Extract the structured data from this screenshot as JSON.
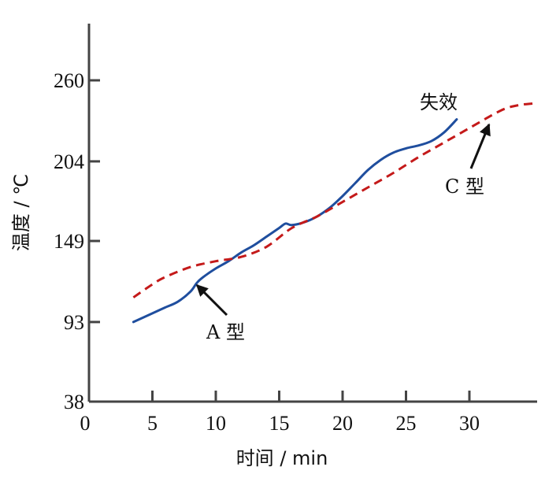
{
  "chart_data": {
    "type": "line",
    "xlabel": "时间 / min",
    "ylabel": "温度 / ℃",
    "x_ticks": [
      0,
      5,
      10,
      15,
      20,
      25,
      30
    ],
    "y_ticks": [
      38,
      93,
      149,
      204,
      260
    ],
    "xlim": [
      0,
      35
    ],
    "ylim": [
      38,
      290
    ],
    "grid": false,
    "series": [
      {
        "name": "A 型",
        "color": "#1f4e9e",
        "style": "solid",
        "points": [
          [
            3.5,
            93
          ],
          [
            5,
            99
          ],
          [
            6,
            103
          ],
          [
            7,
            107
          ],
          [
            8,
            114
          ],
          [
            8.5,
            120
          ],
          [
            9,
            124
          ],
          [
            10,
            130
          ],
          [
            11,
            135
          ],
          [
            12,
            141
          ],
          [
            13,
            146
          ],
          [
            14,
            152
          ],
          [
            15,
            158
          ],
          [
            15.5,
            161
          ],
          [
            16,
            160
          ],
          [
            17,
            162
          ],
          [
            18,
            166
          ],
          [
            19,
            172
          ],
          [
            20,
            180
          ],
          [
            21,
            189
          ],
          [
            22,
            198
          ],
          [
            23,
            205
          ],
          [
            24,
            210
          ],
          [
            25,
            213
          ],
          [
            26,
            215
          ],
          [
            27,
            218
          ],
          [
            28,
            224
          ],
          [
            29,
            233
          ]
        ]
      },
      {
        "name": "C 型",
        "color": "#c41a1a",
        "style": "dashed",
        "points": [
          [
            3.5,
            110
          ],
          [
            5,
            119
          ],
          [
            6,
            124
          ],
          [
            8,
            131
          ],
          [
            10,
            135
          ],
          [
            12,
            138
          ],
          [
            14,
            145
          ],
          [
            16,
            158
          ],
          [
            18,
            166
          ],
          [
            20,
            176
          ],
          [
            22,
            186
          ],
          [
            24,
            196
          ],
          [
            26,
            207
          ],
          [
            28,
            217
          ],
          [
            30,
            227
          ],
          [
            32,
            237
          ],
          [
            33,
            241
          ],
          [
            34,
            243
          ],
          [
            35,
            244
          ]
        ]
      }
    ],
    "annotations": [
      {
        "text": "A 型",
        "target": [
          8.7,
          119
        ]
      },
      {
        "text": "C 型",
        "target": [
          32,
          237
        ]
      },
      {
        "text": "失效"
      }
    ]
  }
}
